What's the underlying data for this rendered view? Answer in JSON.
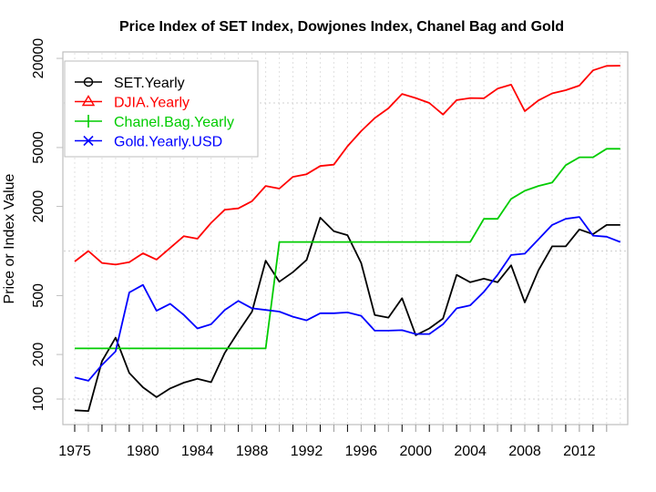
{
  "chart_data": {
    "type": "line",
    "title": "Price Index of SET Index, Dowjones Index, Chanel Bag and Gold",
    "xlabel": "",
    "ylabel": "Price or Index Value",
    "y_scale": "log",
    "ylim": [
      75,
      23000
    ],
    "xlim": [
      1974,
      2015
    ],
    "grid": true,
    "legend_position": "top-left",
    "x": [
      1975,
      1976,
      1977,
      1978,
      1979,
      1980,
      1981,
      1982,
      1983,
      1984,
      1985,
      1986,
      1987,
      1988,
      1989,
      1990,
      1991,
      1992,
      1993,
      1994,
      1995,
      1996,
      1997,
      1998,
      1999,
      2000,
      2001,
      2002,
      2003,
      2004,
      2005,
      2006,
      2007,
      2008,
      2009,
      2010,
      2011,
      2012,
      2013,
      2014,
      2015
    ],
    "x_tick_labels": [
      "1975",
      "1980",
      "1984",
      "1988",
      "1992",
      "1996",
      "2000",
      "2004",
      "2008",
      "2012"
    ],
    "x_tick_values": [
      1975,
      1980,
      1984,
      1988,
      1992,
      1996,
      2000,
      2004,
      2008,
      2012
    ],
    "y_tick_labels": [
      "100",
      "200",
      "500",
      "2000",
      "5000",
      "20000"
    ],
    "y_tick_values": [
      100,
      200,
      500,
      2000,
      5000,
      20000
    ],
    "series": [
      {
        "name": "SET.Yearly",
        "color": "#000000",
        "marker": "circle",
        "values": [
          84,
          83,
          180,
          260,
          150,
          120,
          103,
          118,
          129,
          137,
          130,
          205,
          285,
          390,
          860,
          620,
          720,
          870,
          1680,
          1360,
          1280,
          830,
          370,
          355,
          480,
          270,
          300,
          350,
          690,
          615,
          650,
          615,
          800,
          450,
          740,
          1075,
          1075,
          1400,
          1300,
          1500,
          1500
        ]
      },
      {
        "name": "DJIA.Yearly",
        "color": "#ff0000",
        "marker": "triangle",
        "values": [
          850,
          1000,
          830,
          810,
          840,
          965,
          875,
          1050,
          1260,
          1210,
          1550,
          1900,
          1940,
          2170,
          2750,
          2640,
          3170,
          3300,
          3750,
          3830,
          5100,
          6450,
          7900,
          9200,
          11500,
          10800,
          10000,
          8350,
          10450,
          10800,
          10750,
          12500,
          13300,
          8800,
          10400,
          11600,
          12200,
          13100,
          16600,
          17800,
          17850
        ]
      },
      {
        "name": "Chanel.Bag.Yearly",
        "color": "#00cc00",
        "marker": "plus",
        "values": [
          220,
          220,
          220,
          220,
          220,
          220,
          220,
          220,
          220,
          220,
          220,
          220,
          220,
          220,
          220,
          1150,
          1150,
          1150,
          1150,
          1150,
          1150,
          1150,
          1150,
          1150,
          1150,
          1150,
          1150,
          1150,
          1150,
          1150,
          1650,
          1650,
          2250,
          2550,
          2750,
          2900,
          3800,
          4300,
          4300,
          4900,
          4900
        ]
      },
      {
        "name": "Gold.Yearly.USD",
        "color": "#0000ff",
        "marker": "x",
        "values": [
          140,
          133,
          170,
          210,
          525,
          590,
          395,
          440,
          370,
          300,
          320,
          400,
          460,
          410,
          400,
          390,
          360,
          340,
          380,
          380,
          385,
          365,
          290,
          290,
          292,
          275,
          275,
          320,
          410,
          430,
          530,
          690,
          940,
          960,
          1200,
          1500,
          1650,
          1700,
          1270,
          1250,
          1150
        ]
      }
    ]
  }
}
